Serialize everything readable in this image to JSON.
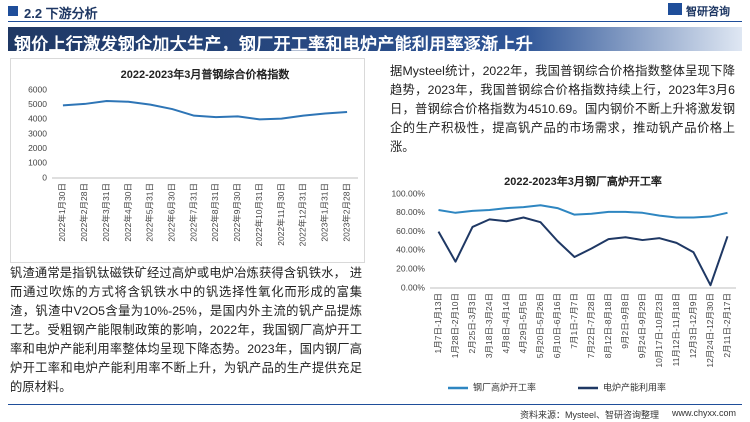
{
  "header": {
    "section": "2.2 下游分析",
    "logo": "智研咨询"
  },
  "banner": "钢价上行激发钢企加大生产，钢厂开工率和电炉产能利用率逐渐上升",
  "paragraphs": [
    "据Mysteel统计，2022年，我国普钢综合价格指数整体呈现下降趋势，2023年，我国普钢综合价格指数持续上行，2023年3月6日，普钢综合价格指数为4510.69。国内钢价不断上升将激发钢企的生产积极性，提高钒产品的市场需求，推动钒产品价格上涨。",
    "钒渣通常是指钒钛磁铁矿经过高炉或电炉冶炼获得含钒铁水， 进而通过吹炼的方式将含钒铁水中的钒选择性氧化而形成的富集渣，钒渣中V2O5含量为10%-25%，是国内外主流的钒产品提炼工艺。受粗钢产能限制政策的影响，2022年，我国钢厂高炉开工率和电炉产能利用率整体均呈现下降态势。2023年，国内钢厂高炉开工率和电炉产能利用率不断上升，为钒产品的生产提供充足的原材料。"
  ],
  "source": "资料来源：Mysteel、智研咨询整理",
  "website": "www.chyxx.com",
  "chart_data": [
    {
      "type": "line",
      "title": "2022-2023年3月普钢综合价格指数",
      "categories": [
        "2022年1月30日",
        "2022年2月28日",
        "2022年3月31日",
        "2022年4月30日",
        "2022年5月31日",
        "2022年6月30日",
        "2022年7月31日",
        "2022年8月31日",
        "2022年9月30日",
        "2022年10月31日",
        "2022年11月30日",
        "2022年12月31日",
        "2023年1月31日",
        "2023年2月28日"
      ],
      "values": [
        4950,
        5050,
        5250,
        5200,
        5000,
        4700,
        4250,
        4150,
        4200,
        4000,
        4050,
        4250,
        4400,
        4500
      ],
      "color": "#2e75b6",
      "ylim": [
        0,
        6000
      ],
      "yticks": [
        0,
        1000,
        2000,
        3000,
        4000,
        5000,
        6000
      ],
      "grid": false
    },
    {
      "type": "line",
      "title": "2022-2023年3月钢厂高炉开工率",
      "categories": [
        "1月7日-1月13日",
        "1月28日-2月10日",
        "2月25日-3月3日",
        "3月18日-3月24日",
        "4月8日-4月14日",
        "4月29日-5月5日",
        "5月20日-5月26日",
        "6月10日-6月16日",
        "7月1日-7月7日",
        "7月22日-7月28日",
        "8月12日-8月18日",
        "9月2日-9月8日",
        "9月24日-9月29日",
        "10月17日-10月23日",
        "11月12日-11月18日",
        "12月3日-12月9日",
        "12月24日-12月30日",
        "2月11日-2月17日"
      ],
      "series": [
        {
          "name": "钢厂高炉开工率",
          "color": "#2e86c1",
          "values": [
            83,
            80,
            82,
            83,
            85,
            86,
            88,
            85,
            78,
            79,
            81,
            81,
            80,
            77,
            75,
            75,
            76,
            80
          ]
        },
        {
          "name": "电炉产能利用率",
          "color": "#1f3864",
          "values": [
            60,
            28,
            65,
            73,
            71,
            75,
            70,
            50,
            33,
            42,
            52,
            54,
            51,
            53,
            48,
            38,
            3,
            55
          ]
        }
      ],
      "ylim": [
        0,
        100
      ],
      "yticks": [
        {
          "value": 0,
          "label": "0.00%"
        },
        {
          "value": 20,
          "label": "20.00%"
        },
        {
          "value": 40,
          "label": "40.00%"
        },
        {
          "value": 60,
          "label": "60.00%"
        },
        {
          "value": 80,
          "label": "80.00%"
        },
        {
          "value": 100,
          "label": "100.00%"
        }
      ],
      "grid": false,
      "legend": "bottom"
    }
  ]
}
